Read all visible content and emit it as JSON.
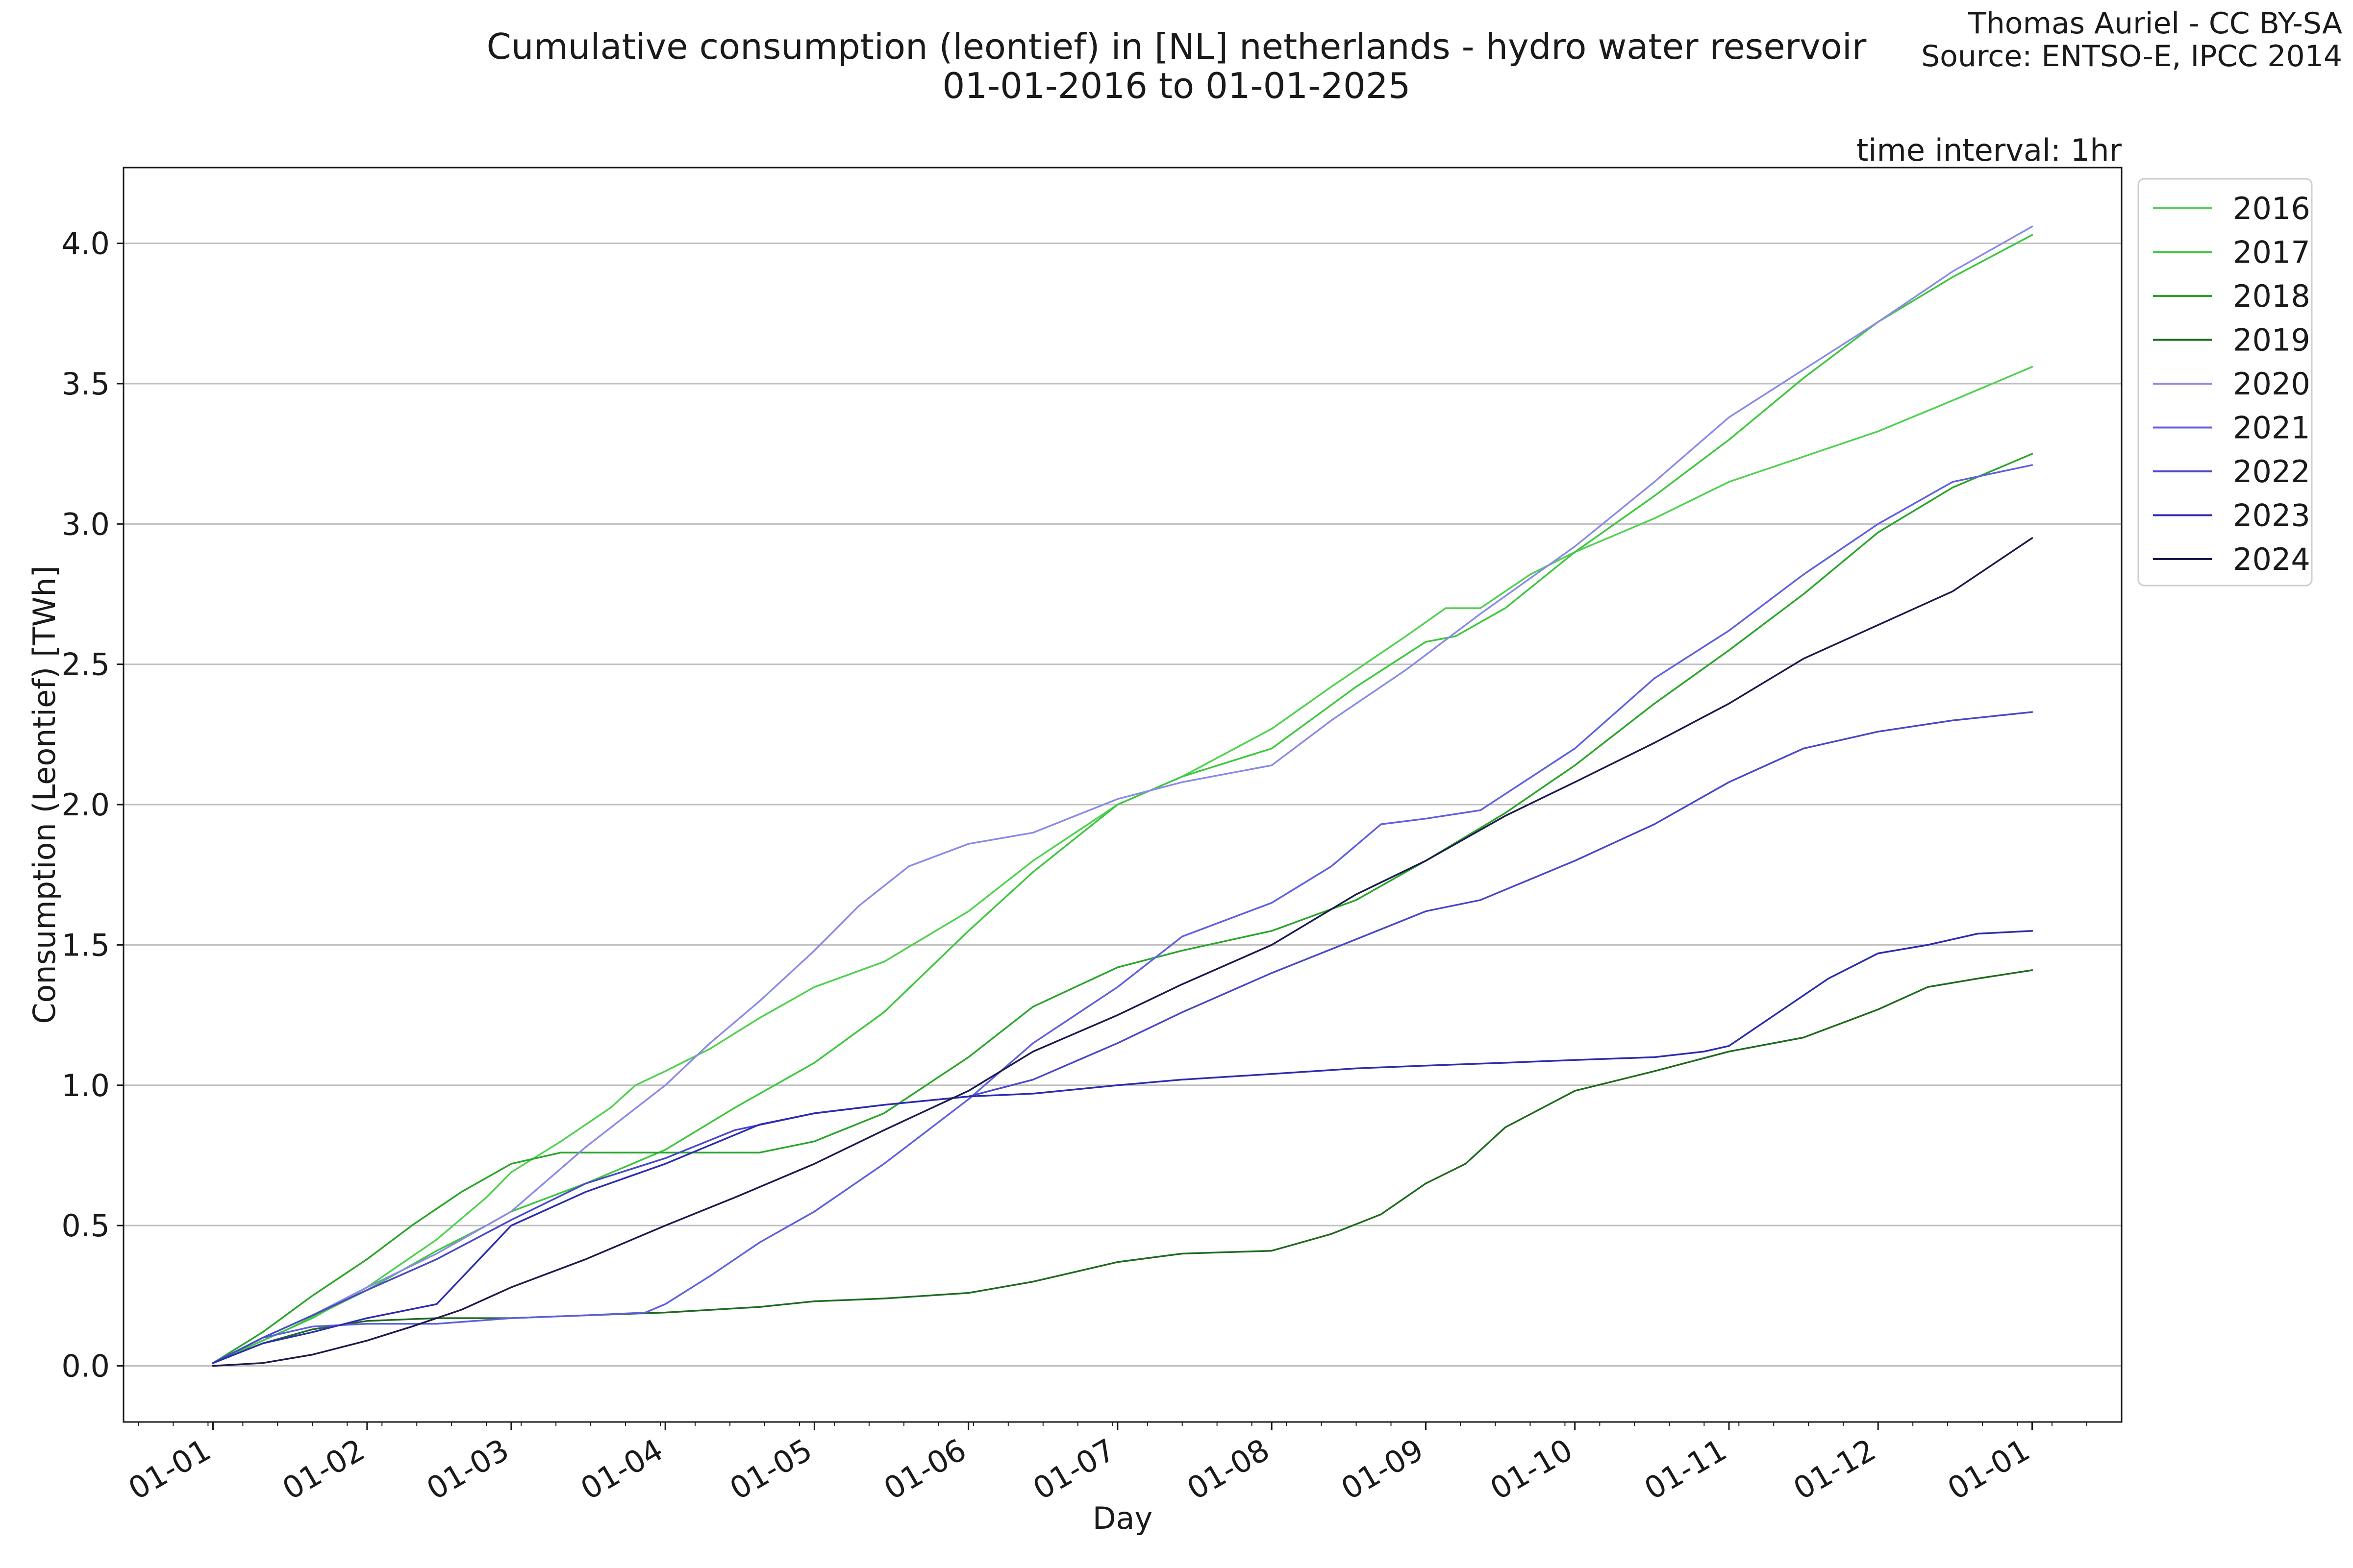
{
  "chart_data": {
    "type": "line",
    "title": "Cumulative consumption (leontief) in [NL] netherlands - hydro water reservoir",
    "subtitle": "01-01-2016 to 01-01-2025",
    "credit_line1": "Thomas Auriel - CC BY-SA",
    "credit_line2": "Source: ENTSO-E, IPCC 2014",
    "annotation": "time interval: 1hr",
    "xlabel": "Day",
    "ylabel": "Consumption (Leontief) [TWh]",
    "x_ticks": [
      "01-01",
      "01-02",
      "01-03",
      "01-04",
      "01-05",
      "01-06",
      "01-07",
      "01-08",
      "01-09",
      "01-10",
      "01-11",
      "01-12",
      "01-01"
    ],
    "x_tick_days": [
      0,
      31,
      60,
      91,
      121,
      152,
      182,
      213,
      244,
      274,
      305,
      335,
      366
    ],
    "xlim": [
      -18,
      384
    ],
    "ylim": [
      -0.2,
      4.27
    ],
    "y_ticks": [
      0.0,
      0.5,
      1.0,
      1.5,
      2.0,
      2.5,
      3.0,
      3.5,
      4.0
    ],
    "y_tick_labels": [
      "0.0",
      "0.5",
      "1.0",
      "1.5",
      "2.0",
      "2.5",
      "3.0",
      "3.5",
      "4.0"
    ],
    "grid": "horizontal",
    "legend_position": "outside-right-top",
    "series": [
      {
        "name": "2016",
        "color": "#4fd14f",
        "x": [
          0,
          10,
          20,
          31,
          45,
          55,
          60,
          70,
          80,
          85,
          91,
          100,
          110,
          121,
          135,
          152,
          165,
          182,
          195,
          213,
          225,
          240,
          248,
          255,
          265,
          274,
          290,
          305,
          320,
          335,
          350,
          366
        ],
        "y": [
          0.01,
          0.09,
          0.17,
          0.28,
          0.45,
          0.6,
          0.69,
          0.8,
          0.92,
          1.0,
          1.05,
          1.13,
          1.24,
          1.35,
          1.44,
          1.62,
          1.8,
          2.0,
          2.1,
          2.27,
          2.42,
          2.6,
          2.7,
          2.7,
          2.82,
          2.9,
          3.02,
          3.15,
          3.24,
          3.33,
          3.44,
          3.56
        ]
      },
      {
        "name": "2017",
        "color": "#3ec73e",
        "x": [
          0,
          15,
          31,
          45,
          55,
          60,
          75,
          91,
          105,
          121,
          135,
          152,
          165,
          182,
          195,
          213,
          230,
          244,
          250,
          260,
          274,
          290,
          305,
          320,
          335,
          350,
          366
        ],
        "y": [
          0.01,
          0.13,
          0.27,
          0.41,
          0.5,
          0.55,
          0.65,
          0.77,
          0.92,
          1.08,
          1.26,
          1.55,
          1.76,
          2.0,
          2.1,
          2.2,
          2.42,
          2.58,
          2.6,
          2.7,
          2.9,
          3.1,
          3.3,
          3.52,
          3.72,
          3.88,
          4.03
        ]
      },
      {
        "name": "2018",
        "color": "#2aa52a",
        "x": [
          0,
          10,
          20,
          31,
          40,
          50,
          60,
          70,
          80,
          91,
          110,
          121,
          135,
          152,
          165,
          182,
          195,
          213,
          230,
          244,
          260,
          274,
          290,
          305,
          320,
          335,
          350,
          366
        ],
        "y": [
          0.01,
          0.12,
          0.25,
          0.38,
          0.5,
          0.62,
          0.72,
          0.76,
          0.76,
          0.76,
          0.76,
          0.8,
          0.9,
          1.1,
          1.28,
          1.42,
          1.48,
          1.55,
          1.66,
          1.8,
          1.97,
          2.14,
          2.36,
          2.55,
          2.75,
          2.97,
          3.13,
          3.25
        ]
      },
      {
        "name": "2019",
        "color": "#1e6b1e",
        "x": [
          0,
          10,
          20,
          31,
          45,
          60,
          75,
          91,
          110,
          121,
          135,
          152,
          165,
          182,
          195,
          213,
          225,
          235,
          244,
          252,
          260,
          274,
          290,
          305,
          320,
          335,
          345,
          355,
          366
        ],
        "y": [
          0.01,
          0.08,
          0.13,
          0.16,
          0.17,
          0.17,
          0.18,
          0.19,
          0.21,
          0.23,
          0.24,
          0.26,
          0.3,
          0.37,
          0.4,
          0.41,
          0.47,
          0.54,
          0.65,
          0.72,
          0.85,
          0.98,
          1.05,
          1.12,
          1.17,
          1.27,
          1.35,
          1.38,
          1.41
        ]
      },
      {
        "name": "2020",
        "color": "#8a8ae6",
        "x": [
          0,
          10,
          20,
          31,
          45,
          60,
          75,
          91,
          100,
          110,
          121,
          130,
          140,
          152,
          165,
          182,
          195,
          213,
          225,
          240,
          255,
          274,
          290,
          305,
          320,
          335,
          350,
          366
        ],
        "y": [
          0.01,
          0.1,
          0.18,
          0.28,
          0.4,
          0.55,
          0.78,
          1.0,
          1.15,
          1.3,
          1.48,
          1.64,
          1.78,
          1.86,
          1.9,
          2.02,
          2.08,
          2.14,
          2.3,
          2.48,
          2.68,
          2.92,
          3.15,
          3.38,
          3.55,
          3.72,
          3.9,
          4.06
        ]
      },
      {
        "name": "2021",
        "color": "#5f5fe0",
        "x": [
          0,
          10,
          20,
          31,
          45,
          60,
          75,
          87,
          91,
          100,
          110,
          121,
          135,
          152,
          165,
          182,
          195,
          213,
          225,
          235,
          244,
          255,
          274,
          290,
          305,
          320,
          335,
          350,
          366
        ],
        "y": [
          0.01,
          0.1,
          0.14,
          0.15,
          0.15,
          0.17,
          0.18,
          0.19,
          0.22,
          0.32,
          0.44,
          0.55,
          0.72,
          0.95,
          1.15,
          1.35,
          1.53,
          1.65,
          1.78,
          1.93,
          1.95,
          1.98,
          2.2,
          2.45,
          2.62,
          2.82,
          3.0,
          3.15,
          3.21
        ]
      },
      {
        "name": "2022",
        "color": "#4848c8",
        "x": [
          0,
          10,
          20,
          31,
          45,
          60,
          75,
          91,
          105,
          121,
          135,
          152,
          165,
          182,
          195,
          213,
          230,
          244,
          255,
          274,
          290,
          305,
          320,
          335,
          350,
          366
        ],
        "y": [
          0.01,
          0.1,
          0.18,
          0.27,
          0.38,
          0.52,
          0.65,
          0.74,
          0.84,
          0.9,
          0.93,
          0.96,
          1.02,
          1.15,
          1.26,
          1.4,
          1.52,
          1.62,
          1.66,
          1.8,
          1.93,
          2.08,
          2.2,
          2.26,
          2.3,
          2.33
        ]
      },
      {
        "name": "2023",
        "color": "#2c2cb0",
        "x": [
          0,
          10,
          20,
          31,
          45,
          60,
          75,
          91,
          110,
          121,
          135,
          152,
          165,
          182,
          195,
          213,
          230,
          244,
          260,
          274,
          290,
          300,
          305,
          315,
          325,
          335,
          345,
          355,
          366
        ],
        "y": [
          0.01,
          0.08,
          0.12,
          0.17,
          0.22,
          0.5,
          0.62,
          0.72,
          0.86,
          0.9,
          0.93,
          0.96,
          0.97,
          1.0,
          1.02,
          1.04,
          1.06,
          1.07,
          1.08,
          1.09,
          1.1,
          1.12,
          1.14,
          1.26,
          1.38,
          1.47,
          1.5,
          1.54,
          1.55
        ]
      },
      {
        "name": "2024",
        "color": "#1a1a4d",
        "x": [
          0,
          10,
          20,
          31,
          40,
          50,
          60,
          75,
          91,
          105,
          121,
          135,
          152,
          165,
          182,
          195,
          213,
          230,
          244,
          260,
          274,
          290,
          305,
          320,
          335,
          350,
          366
        ],
        "y": [
          0.0,
          0.01,
          0.04,
          0.09,
          0.14,
          0.2,
          0.28,
          0.38,
          0.5,
          0.6,
          0.72,
          0.84,
          0.98,
          1.12,
          1.25,
          1.36,
          1.5,
          1.68,
          1.8,
          1.96,
          2.08,
          2.22,
          2.36,
          2.52,
          2.64,
          2.76,
          2.95
        ]
      }
    ]
  }
}
